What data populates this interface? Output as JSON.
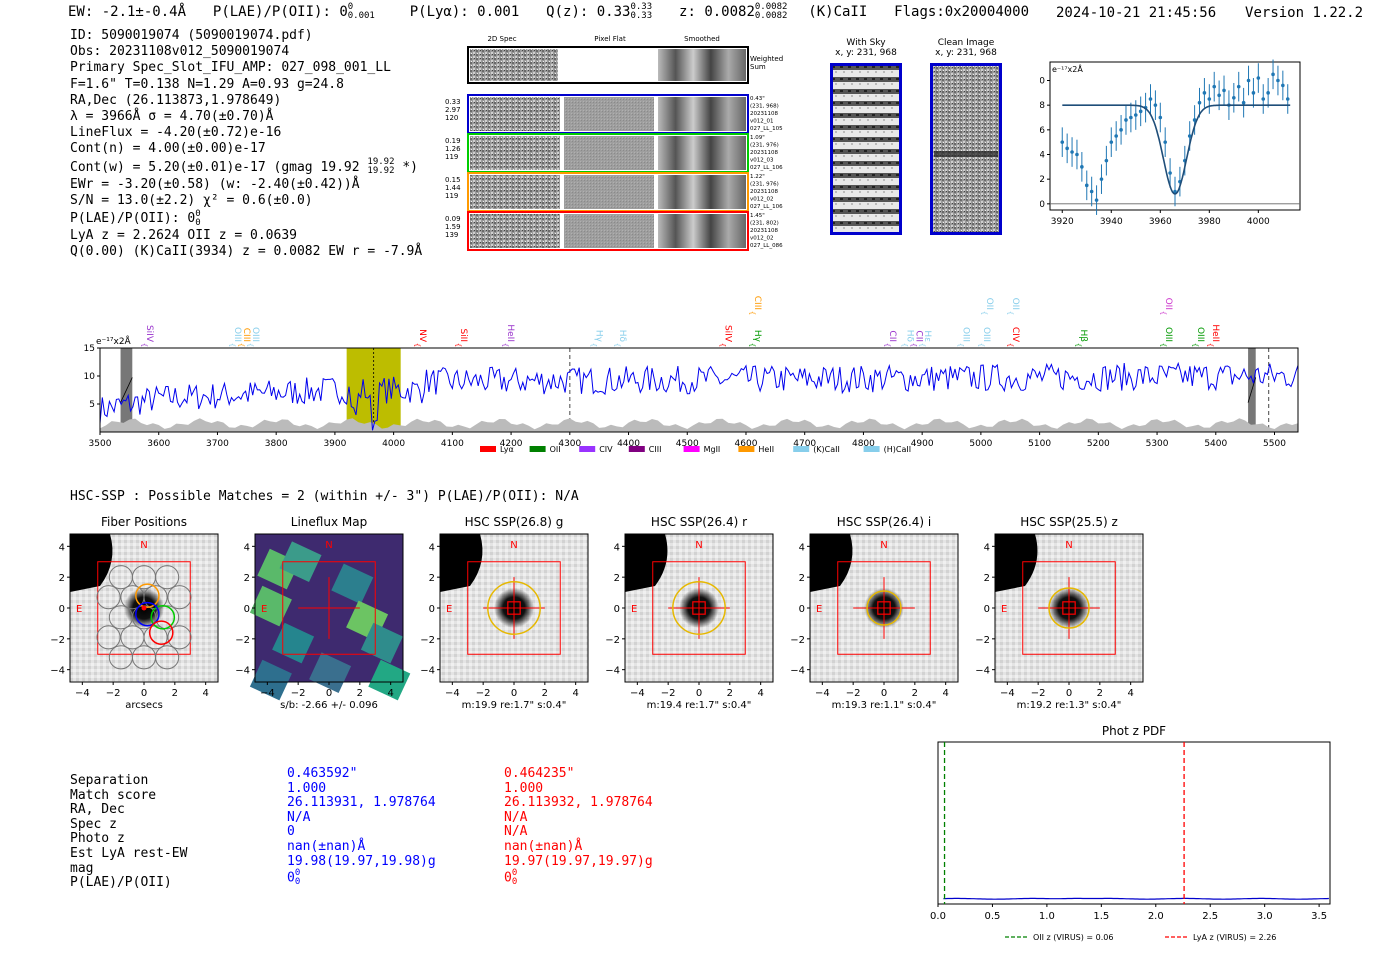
{
  "header": {
    "ew": "EW: -2.1±-0.4Å",
    "plae": "P(LAE)/P(OII): 0",
    "plae_sup": "0",
    "plae_sub": "0.001",
    "plya": "P(Lyα): 0.001",
    "qz": "Q(z): 0.33",
    "qz_sup": "0.33",
    "qz_sub": "0.33",
    "z": "z: 0.0082",
    "z_sup": "0.0082",
    "z_sub": "0.0082",
    "zline": "(K)CaII",
    "flags": "Flags:0x20004000",
    "datetime": "2024-10-21 21:45:56",
    "version": "Version 1.22.2"
  },
  "info": {
    "id": "ID: 5090019074 (5090019074.pdf)",
    "obs": "Obs: 20231108v012_5090019074",
    "primary": "Primary Spec_Slot_IFU_AMP: 027_098_001_LL",
    "params": "F=1.6\"  T=0.138  N=1.29  A=0.93  g=24.8",
    "radec": "RA,Dec (26.113873,1.978649)",
    "lambda": "λ = 3966Å  σ = 4.70(±0.70)Å",
    "lineflux": "LineFlux = -4.20(±0.72)e-16",
    "contn": "Cont(n) = 4.00(±0.00)e-17",
    "contw": "Cont(w) = 5.20(±0.01)e-17 (gmag 19.92",
    "contw_sup": "19.92",
    "contw_sub": "19.92",
    "contw_end": "*)",
    "ewr": "EWr = -3.20(±0.58) (w: -2.40(±0.42))Å",
    "sn": "S/N = 13.0(±2.2)  χ² = 0.6(±0.0)",
    "plae": "P(LAE)/P(OII): 0",
    "plae_sup": "0",
    "plae_sub": "0",
    "lyaz": "LyA z = 2.2624  OII z = 0.0639",
    "q": "Q(0.00) (K)CaII(3934) z = 0.0082  EW r = -7.9Å"
  },
  "cutouts": {
    "col_titles": [
      "2D Spec",
      "Pixel Flat",
      "Smoothed"
    ],
    "weighted_sum": "Weighted\nSum",
    "rows": [
      {
        "left": [
          "0.33",
          "2.97",
          "120"
        ],
        "right": [
          "0.43\"",
          "(231, 968)",
          "20231108",
          "v012_01",
          "027_LL_105"
        ],
        "color": "#0000cc"
      },
      {
        "left": [
          "0.19",
          "1.26",
          "119"
        ],
        "right": [
          "1.09\"",
          "(231, 976)",
          "20231108",
          "v012_03",
          "027_LL_106"
        ],
        "color": "#00cc00"
      },
      {
        "left": [
          "0.15",
          "1.44",
          "119"
        ],
        "right": [
          "1.22\"",
          "(231, 976)",
          "20231108",
          "v012_02",
          "027_LL_106"
        ],
        "color": "#ff9900"
      },
      {
        "left": [
          "0.09",
          "1.59",
          "139"
        ],
        "right": [
          "1.45\"",
          "(231, 802)",
          "20231108",
          "v012_02",
          "027_LL_086"
        ],
        "color": "#ff0000"
      }
    ],
    "with_sky": {
      "title": "With Sky",
      "coords": "x, y: 231, 968"
    },
    "clean": {
      "title": "Clean Image",
      "coords": "x, y: 231, 968"
    }
  },
  "chart_data": [
    {
      "type": "line",
      "id": "line-fit",
      "ylabel": "e⁻¹⁷x2Å",
      "xlim": [
        3915,
        4017
      ],
      "ylim": [
        -0.5,
        11.5
      ],
      "xticks": [
        3920,
        3940,
        3960,
        3980,
        4000
      ],
      "yticks": [
        0,
        2,
        4,
        6,
        8,
        10
      ],
      "fit_color": "#1f4e79",
      "data_color": "#1f77b4",
      "model_continuum": 8.0,
      "model_line_center": 3966,
      "model_sigma": 4.7,
      "model_depth": 7.2,
      "model_xrange": [
        3920,
        4013
      ],
      "points_x": [
        3920,
        3922,
        3924,
        3926,
        3928,
        3930,
        3932,
        3934,
        3936,
        3938,
        3940,
        3942,
        3944,
        3946,
        3948,
        3950,
        3952,
        3954,
        3956,
        3958,
        3960,
        3962,
        3964,
        3966,
        3968,
        3970,
        3972,
        3974,
        3976,
        3978,
        3980,
        3982,
        3984,
        3986,
        3988,
        3990,
        3992,
        3994,
        3996,
        3998,
        4000,
        4002,
        4004,
        4006,
        4008,
        4010,
        4012
      ],
      "points_y": [
        5.0,
        4.5,
        4.2,
        4.0,
        3.0,
        1.5,
        1.0,
        0.3,
        2.0,
        3.5,
        5.0,
        5.5,
        6.0,
        6.8,
        7.0,
        7.2,
        7.5,
        7.8,
        8.5,
        8.0,
        7.0,
        5.0,
        2.5,
        1.0,
        1.8,
        3.5,
        5.5,
        6.8,
        8.2,
        9.0,
        8.5,
        9.5,
        8.8,
        9.2,
        8.0,
        8.6,
        9.5,
        8.2,
        10.0,
        9.0,
        10.2,
        8.5,
        9.0,
        10.5,
        10.0,
        9.6,
        8.5
      ],
      "points_err": [
        1.2,
        1.2,
        1.2,
        1.2,
        1.2,
        1.2,
        1.2,
        1.2,
        1.2,
        1.2,
        1.2,
        1.2,
        1.2,
        1.2,
        1.2,
        1.2,
        1.2,
        1.2,
        1.2,
        1.2,
        1.2,
        1.2,
        1.2,
        1.2,
        1.2,
        1.2,
        1.2,
        1.2,
        1.2,
        1.2,
        1.2,
        1.2,
        1.2,
        1.2,
        1.2,
        1.2,
        1.2,
        1.2,
        1.2,
        1.2,
        1.2,
        1.2,
        1.2,
        1.2,
        1.2,
        1.2,
        1.2
      ]
    },
    {
      "type": "line",
      "id": "full-spectrum",
      "ylabel": "e⁻¹⁷x2Å",
      "xlim": [
        3500,
        5540
      ],
      "ylim": [
        0,
        15
      ],
      "xticks": [
        3500,
        3600,
        3700,
        3800,
        3900,
        4000,
        4100,
        4200,
        4300,
        4400,
        4500,
        4600,
        4700,
        4800,
        4900,
        5000,
        5100,
        5200,
        5300,
        5400,
        5500
      ],
      "yticks": [
        5,
        10,
        15
      ],
      "series_color": "#0000ee",
      "noise_color": "#bbbbbb",
      "highlight": [
        3920,
        4012
      ],
      "highlight_center": 3966,
      "dashed_lines": [
        4300,
        5490
      ],
      "masked_regions": [
        [
          3535,
          3555
        ],
        [
          5455,
          5468
        ]
      ],
      "x_start": 3500,
      "x_step": 4.0,
      "emission_lines": [
        {
          "label": "SiIV",
          "x": 3575,
          "color": "#9933cc",
          "row": 0
        },
        {
          "label": "OIII",
          "x": 3725,
          "color": "#87ceeb",
          "row": 0
        },
        {
          "label": "CIII",
          "x": 3740,
          "color": "#ff9900",
          "row": 0
        },
        {
          "label": "OIII",
          "x": 3755,
          "color": "#87ceeb",
          "row": 0
        },
        {
          "label": "NV",
          "x": 4040,
          "color": "#ff0000",
          "row": 0
        },
        {
          "label": "SiII",
          "x": 4110,
          "color": "#ff0000",
          "row": 0
        },
        {
          "label": "HeII",
          "x": 4190,
          "color": "#9933cc",
          "row": 0
        },
        {
          "label": "Hγ",
          "x": 4340,
          "color": "#87ceeb",
          "row": 0
        },
        {
          "label": "Hδ",
          "x": 4380,
          "color": "#87ceeb",
          "row": 0
        },
        {
          "label": "SiIV",
          "x": 4560,
          "color": "#ff0000",
          "row": 0
        },
        {
          "label": "Hγ",
          "x": 4610,
          "color": "#009900",
          "row": 0
        },
        {
          "label": "CIII",
          "x": 4610,
          "color": "#ff9900",
          "row": 1
        },
        {
          "label": "CII",
          "x": 4840,
          "color": "#9933cc",
          "row": 0
        },
        {
          "label": "Hδ",
          "x": 4870,
          "color": "#87ceeb",
          "row": 0
        },
        {
          "label": "CII",
          "x": 4885,
          "color": "#9933cc",
          "row": 0
        },
        {
          "label": "Hε",
          "x": 4900,
          "color": "#87ceeb",
          "row": 0
        },
        {
          "label": "OIII",
          "x": 4965,
          "color": "#87ceeb",
          "row": 0
        },
        {
          "label": "OIII",
          "x": 5000,
          "color": "#87ceeb",
          "row": 0
        },
        {
          "label": "OII",
          "x": 5005,
          "color": "#87ceeb",
          "row": 1
        },
        {
          "label": "CIV",
          "x": 5050,
          "color": "#ff0000",
          "row": 0
        },
        {
          "label": "OII",
          "x": 5050,
          "color": "#87ceeb",
          "row": 1
        },
        {
          "label": "Hβ",
          "x": 5165,
          "color": "#009900",
          "row": 0
        },
        {
          "label": "OII",
          "x": 5310,
          "color": "#cc33cc",
          "row": 1
        },
        {
          "label": "OIII",
          "x": 5310,
          "color": "#009900",
          "row": 0
        },
        {
          "label": "OIII",
          "x": 5365,
          "color": "#009900",
          "row": 0
        },
        {
          "label": "HeII",
          "x": 5390,
          "color": "#ff0000",
          "row": 0
        }
      ],
      "legend": [
        {
          "label": "Lyα",
          "color": "#ff0000"
        },
        {
          "label": "OII",
          "color": "#008000"
        },
        {
          "label": "CIV",
          "color": "#9933ff"
        },
        {
          "label": "CIII",
          "color": "#800080"
        },
        {
          "label": "MgII",
          "color": "#ff00ff"
        },
        {
          "label": "HeII",
          "color": "#ff9900"
        },
        {
          "label": "(K)CaII",
          "color": "#87ceeb"
        },
        {
          "label": "(H)CaII",
          "color": "#87ceeb"
        }
      ]
    },
    {
      "type": "line",
      "id": "photz-pdf",
      "title": "Phot z PDF",
      "xlim": [
        0,
        3.6
      ],
      "xticks": [
        0.0,
        0.5,
        1.0,
        1.5,
        2.0,
        2.5,
        3.0,
        3.5
      ],
      "oii_z": 0.06,
      "lya_z": 2.26,
      "legend": [
        {
          "label": "OII z (VIRUS) = 0.06",
          "color": "#008000"
        },
        {
          "label": "LyA z (VIRUS) = 2.26",
          "color": "#ff0000"
        }
      ]
    }
  ],
  "hsc": {
    "title": "HSC-SSP : Possible Matches = 2 (within +/- 3\")  P(LAE)/P(OII): N/A",
    "panels": [
      {
        "title": "Fiber Positions",
        "caption": "arcsecs"
      },
      {
        "title": "Lineflux Map",
        "caption": "s/b: -2.66 +/- 0.096"
      },
      {
        "title": "HSC SSP(26.8) g",
        "caption": "m:19.9  re:1.7\"  s:0.4\""
      },
      {
        "title": "HSC SSP(26.4) r",
        "caption": "m:19.4  re:1.7\"  s:0.4\""
      },
      {
        "title": "HSC SSP(26.4) i",
        "caption": "m:19.3  re:1.1\"  s:0.4\""
      },
      {
        "title": "HSC SSP(25.5) z",
        "caption": "m:19.2  re:1.3\"  s:0.4\""
      }
    ],
    "axis_ticks": [
      "4",
      "2",
      "0",
      "−2",
      "−4"
    ],
    "x_ticks": [
      "−4",
      "−2",
      "0",
      "2",
      "4"
    ],
    "n_label": "N",
    "e_label": "E"
  },
  "matches": {
    "labels": [
      "Separation",
      "Match score",
      "RA, Dec",
      "Spec z",
      "Photo z",
      "Est LyA rest-EW",
      "mag",
      "P(LAE)/P(OII)"
    ],
    "blue": [
      "0.463592\"",
      "1.000",
      "26.113931, 1.978764",
      "N/A",
      "0",
      "nan(±nan)Å",
      "19.98(19.97,19.98)g",
      "0"
    ],
    "red": [
      "0.464235\"",
      "1.000",
      "26.113932, 1.978764",
      "N/A",
      "N/A",
      "nan(±nan)Å",
      "19.97(19.97,19.97)g",
      "0"
    ],
    "blue_plae_sup": "0",
    "blue_plae_sub": "0",
    "red_plae_sup": "0",
    "red_plae_sub": "0"
  }
}
